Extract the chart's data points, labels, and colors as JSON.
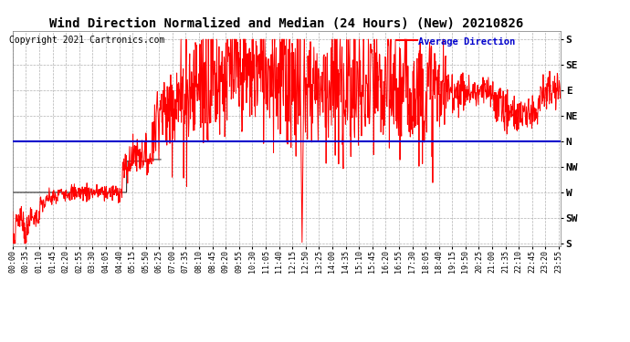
{
  "title": "Wind Direction Normalized and Median (24 Hours) (New) 20210826",
  "copyright": "Copyright 2021 Cartronics.com",
  "legend_blue_text": "Average Direction",
  "y_labels": [
    "S",
    "SE",
    "E",
    "NE",
    "N",
    "NW",
    "W",
    "SW",
    "S"
  ],
  "y_ticks": [
    360,
    315,
    270,
    225,
    180,
    135,
    90,
    45,
    0
  ],
  "ylim": [
    -5,
    375
  ],
  "average_line_y": 180,
  "background_color": "#ffffff",
  "red_color": "#ff0000",
  "dark_color": "#333333",
  "blue_color": "#0000cc",
  "title_fontsize": 10,
  "copyright_fontsize": 7,
  "tick_fontsize": 6,
  "ylabel_fontsize": 8,
  "grid_color": "#aaaaaa"
}
